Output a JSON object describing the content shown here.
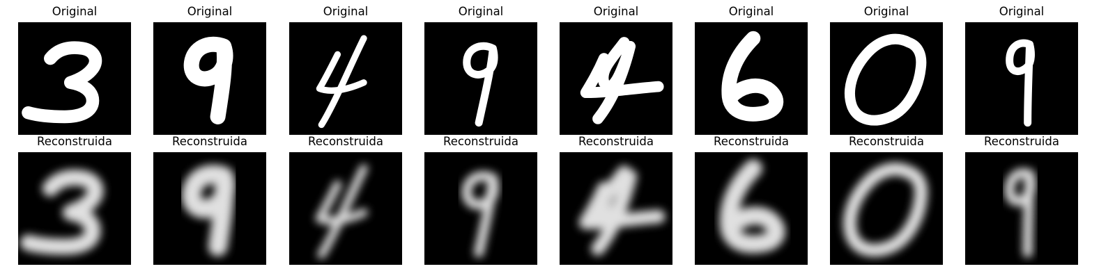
{
  "figure": {
    "rows": [
      {
        "label": "Original",
        "kind": "original",
        "digits": [
          "3",
          "9",
          "4",
          "9",
          "4",
          "6",
          "0",
          "9"
        ]
      },
      {
        "label": "Reconstruida",
        "kind": "reconstruction",
        "digits": [
          "3",
          "9",
          "4",
          "9",
          "4",
          "6",
          "0",
          "9"
        ]
      }
    ],
    "colors": {
      "background": "#ffffff",
      "image_background": "#000000",
      "stroke": "#ffffff"
    }
  }
}
